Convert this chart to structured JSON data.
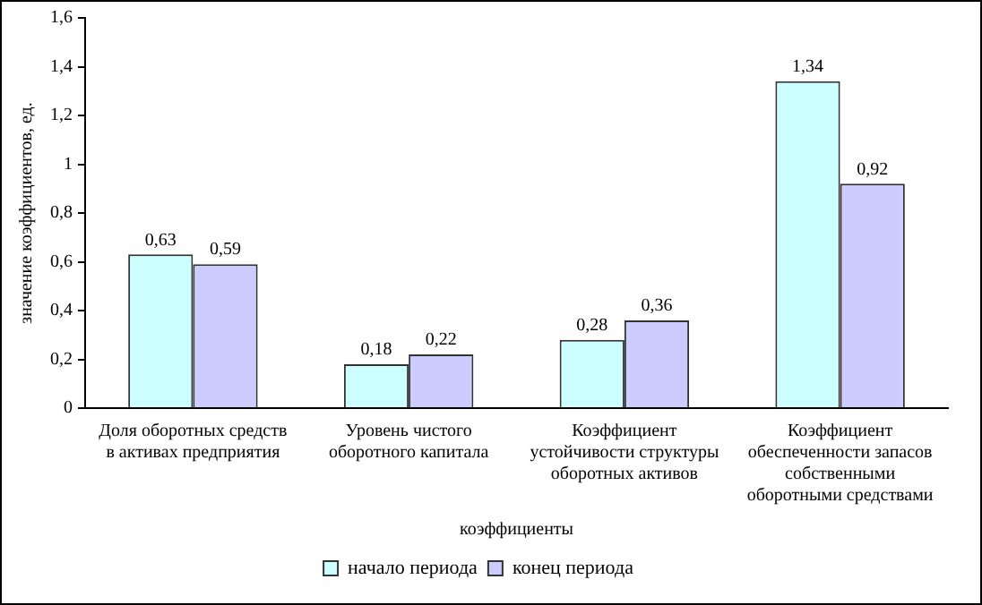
{
  "chart_data": {
    "type": "bar",
    "ylabel": "значение коэффициентов, ед.",
    "xlabel": "коэффициенты",
    "categories": [
      "Доля оборотных средств в активах предприятия",
      "Уровень чистого оборотного капитала",
      "Коэффициент устойчивости структуры оборотных активов",
      "Коэффициент обеспеченности запасов собственными оборотными средствами"
    ],
    "series": [
      {
        "name": "начало периода",
        "color": "#ccffff",
        "values": [
          0.63,
          0.18,
          0.28,
          1.34
        ],
        "value_labels": [
          "0,63",
          "0,18",
          "0,28",
          "1,34"
        ]
      },
      {
        "name": "конец периода",
        "color": "#ccccff",
        "values": [
          0.59,
          0.22,
          0.36,
          0.92
        ],
        "value_labels": [
          "0,59",
          "0,22",
          "0,36",
          "0,92"
        ]
      }
    ],
    "ylim": [
      0,
      1.6
    ],
    "yticks": [
      0,
      {
        "value": 0.2,
        "label": "0,2"
      },
      {
        "value": 0.4,
        "label": "0,4"
      },
      {
        "value": 0.6,
        "label": "0,6"
      },
      {
        "value": 0.8,
        "label": "0,8"
      },
      1,
      {
        "value": 1.2,
        "label": "1,2"
      },
      {
        "value": 1.4,
        "label": "1,4"
      },
      {
        "value": 1.6,
        "label": "1,6"
      }
    ],
    "grid": false,
    "legend": "bottom"
  }
}
